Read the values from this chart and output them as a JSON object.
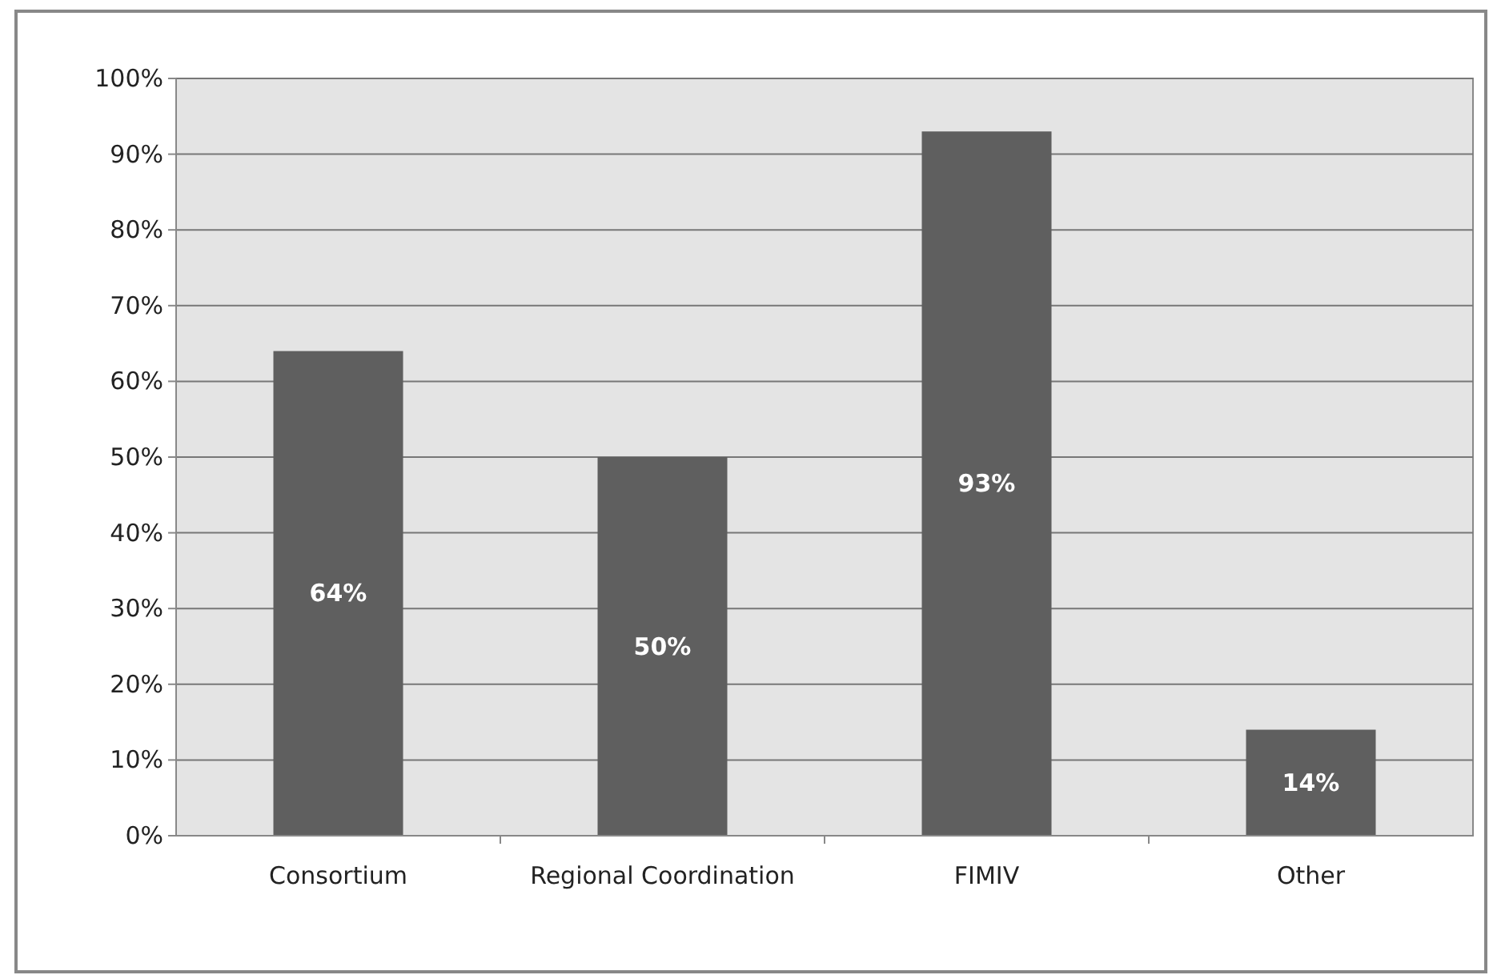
{
  "chart_data": {
    "type": "bar",
    "categories": [
      "Consortium",
      "Regional Coordination",
      "FIMIV",
      "Other"
    ],
    "values": [
      64,
      50,
      93,
      14
    ],
    "color": "#5f5f5f",
    "ylim": [
      0,
      100
    ],
    "yticks": [
      {
        "value": 0,
        "label": "0%"
      },
      {
        "value": 10,
        "label": "10%"
      },
      {
        "value": 20,
        "label": "20%"
      },
      {
        "value": 30,
        "label": "30%"
      },
      {
        "value": 40,
        "label": "40%"
      },
      {
        "value": 50,
        "label": "50%"
      },
      {
        "value": 60,
        "label": "60%"
      },
      {
        "value": 70,
        "label": "70%"
      },
      {
        "value": 80,
        "label": "80%"
      },
      {
        "value": 90,
        "label": "90%"
      },
      {
        "value": 100,
        "label": "100%"
      }
    ],
    "grid": "y",
    "value_labels": [
      "64%",
      "50%",
      "93%",
      "14%"
    ]
  }
}
